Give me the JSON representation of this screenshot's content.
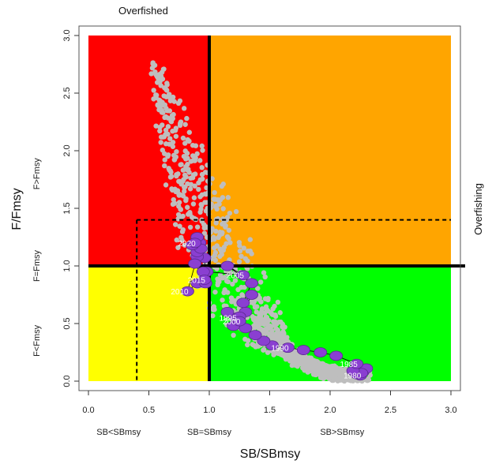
{
  "chart_data": {
    "type": "scatter",
    "title": "Overfished",
    "right_label": "Overfishing",
    "xlabel": "SB/SBmsy",
    "ylabel": "F/Fmsy",
    "xlim": [
      0,
      3
    ],
    "ylim": [
      0,
      3
    ],
    "x_ticks": [
      "0.0",
      "0.5",
      "1.0",
      "1.5",
      "2.0",
      "2.5",
      "3.0"
    ],
    "y_ticks": [
      "0.0",
      "0.5",
      "1.0",
      "1.5",
      "2.0",
      "2.5",
      "3.0"
    ],
    "x_region_labels": [
      {
        "text": "SB<SBmsy",
        "x": 0.25
      },
      {
        "text": "SB=SBmsy",
        "x": 1.0
      },
      {
        "text": "SB>SBmsy",
        "x": 2.1
      }
    ],
    "y_region_labels": [
      {
        "text": "F<Fmsy",
        "y": 0.35
      },
      {
        "text": "F=Fmsy",
        "y": 1.0
      },
      {
        "text": "F>Fmsy",
        "y": 1.8
      }
    ],
    "quadrants": [
      {
        "name": "overfished-and-overfishing",
        "color": "#ff0000",
        "x": [
          0,
          1
        ],
        "y": [
          1,
          3
        ]
      },
      {
        "name": "overfishing-only",
        "color": "#ffa500",
        "x": [
          1,
          3
        ],
        "y": [
          1,
          3
        ]
      },
      {
        "name": "overfished-only",
        "color": "#ffff00",
        "x": [
          0,
          1
        ],
        "y": [
          0,
          1
        ]
      },
      {
        "name": "healthy",
        "color": "#00ff00",
        "x": [
          1,
          3
        ],
        "y": [
          0,
          1
        ]
      }
    ],
    "reference_lines": {
      "solid_x": 1.0,
      "solid_y": 1.0,
      "dashed_x": 0.4,
      "dashed_y": 1.4
    },
    "uncertainty_cloud_color": "#bebebe",
    "trajectory_color": "#8a3fd1",
    "trajectory": [
      {
        "year": "1980",
        "x": 2.25,
        "y": 0.05
      },
      {
        "x": 2.22,
        "y": 0.06
      },
      {
        "x": 2.27,
        "y": 0.08
      },
      {
        "x": 2.3,
        "y": 0.11
      },
      {
        "x": 2.26,
        "y": 0.07
      },
      {
        "x": 2.19,
        "y": 0.09
      },
      {
        "year": "1985",
        "x": 2.22,
        "y": 0.15
      },
      {
        "x": 2.05,
        "y": 0.22
      },
      {
        "x": 1.92,
        "y": 0.25
      },
      {
        "x": 1.78,
        "y": 0.27
      },
      {
        "year": "1990",
        "x": 1.65,
        "y": 0.29
      },
      {
        "x": 1.52,
        "y": 0.31
      },
      {
        "x": 1.45,
        "y": 0.35
      },
      {
        "x": 1.38,
        "y": 0.4
      },
      {
        "x": 1.3,
        "y": 0.46
      },
      {
        "year": "1995",
        "x": 1.22,
        "y": 0.55
      },
      {
        "x": 1.3,
        "y": 0.6
      },
      {
        "x": 1.2,
        "y": 0.48
      },
      {
        "x": 1.25,
        "y": 0.56
      },
      {
        "x": 1.15,
        "y": 0.6
      },
      {
        "year": "2000",
        "x": 1.25,
        "y": 0.52
      },
      {
        "x": 1.35,
        "y": 0.75
      },
      {
        "x": 1.28,
        "y": 0.68
      },
      {
        "x": 1.35,
        "y": 0.85
      },
      {
        "x": 1.15,
        "y": 1.0
      },
      {
        "year": "2005",
        "x": 1.28,
        "y": 0.92
      },
      {
        "x": 0.98,
        "y": 0.95
      },
      {
        "x": 0.92,
        "y": 1.2
      },
      {
        "x": 0.96,
        "y": 1.07
      },
      {
        "x": 0.9,
        "y": 1.08
      },
      {
        "year": "2010",
        "x": 0.82,
        "y": 0.78
      },
      {
        "x": 0.9,
        "y": 0.85
      },
      {
        "x": 0.97,
        "y": 0.85
      },
      {
        "x": 0.95,
        "y": 0.95
      },
      {
        "x": 0.88,
        "y": 1.02
      },
      {
        "year": "2015",
        "x": 0.96,
        "y": 0.88
      },
      {
        "x": 0.9,
        "y": 1.12
      },
      {
        "x": 0.93,
        "y": 1.15
      },
      {
        "x": 0.86,
        "y": 1.18
      },
      {
        "x": 0.9,
        "y": 1.25
      },
      {
        "year": "2020",
        "x": 0.88,
        "y": 1.2
      }
    ],
    "grid": false
  }
}
